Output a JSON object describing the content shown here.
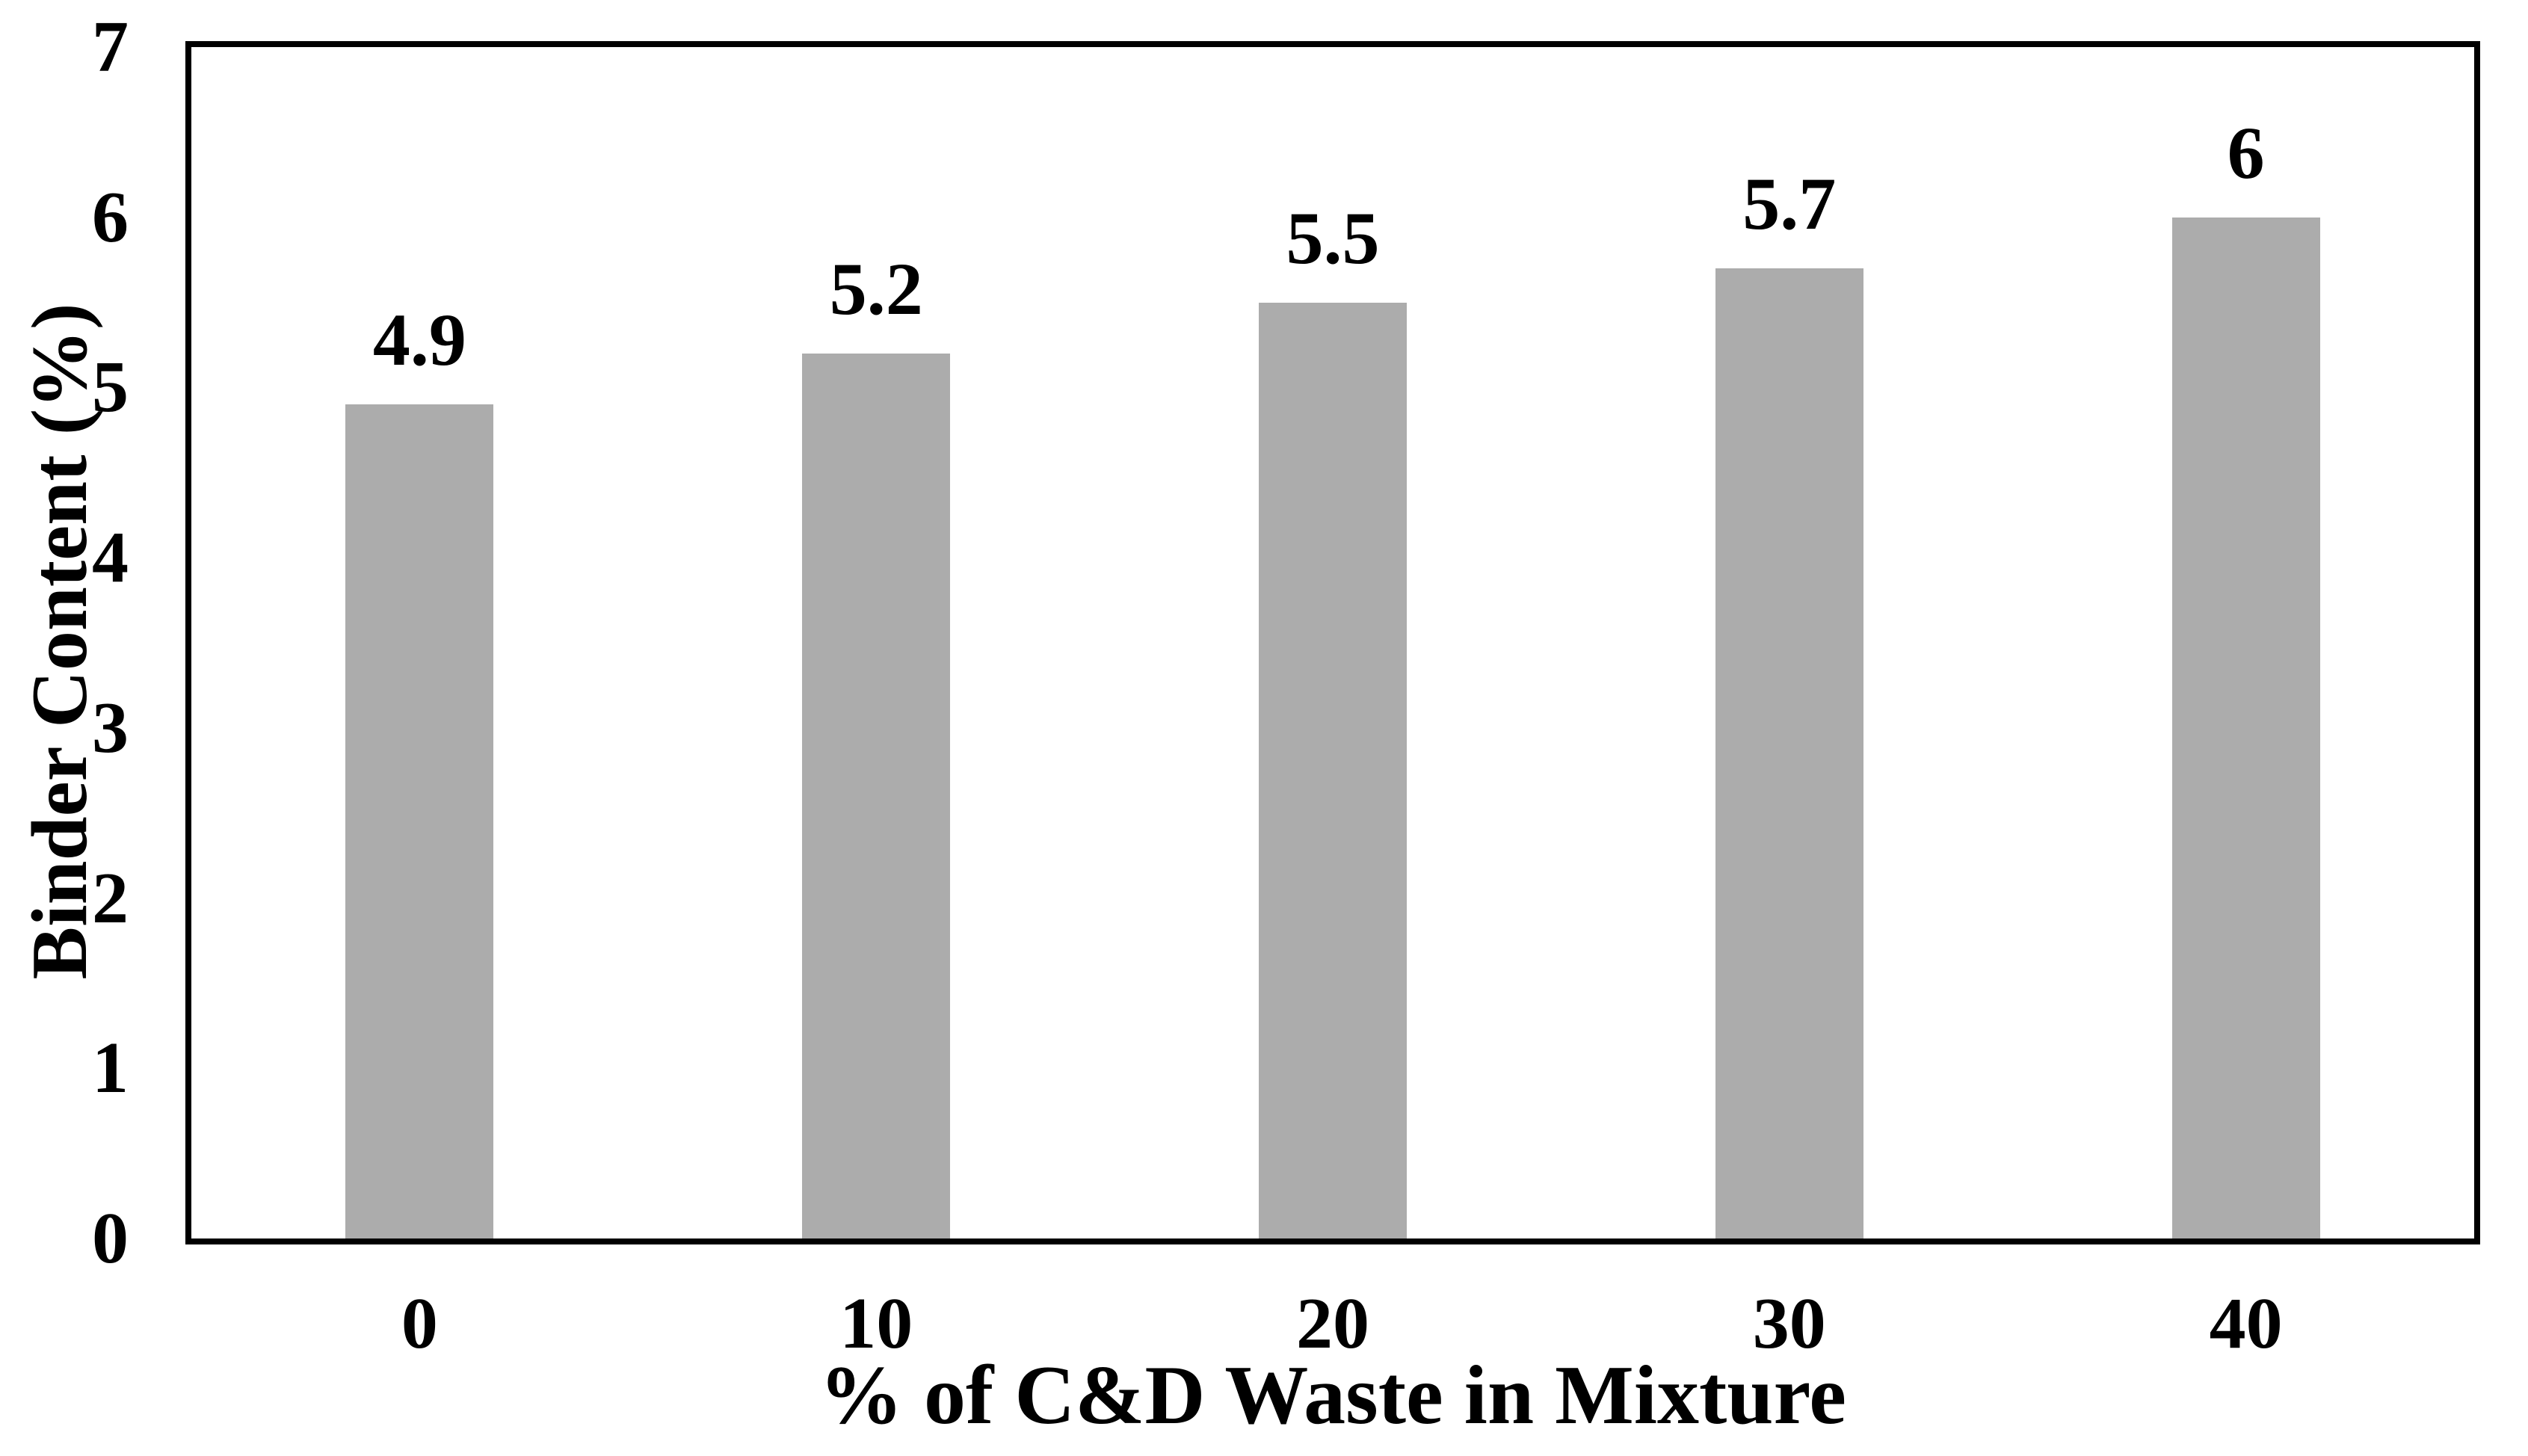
{
  "chart_data": {
    "type": "bar",
    "title": "",
    "categories": [
      "0",
      "10",
      "20",
      "30",
      "40"
    ],
    "values": [
      4.9,
      5.2,
      5.5,
      5.7,
      6
    ],
    "value_labels": [
      "4.9",
      "5.2",
      "5.5",
      "5.7",
      "6"
    ],
    "xlabel": "% of C&D Waste in Mixture",
    "ylabel": "Binder Content (%)",
    "ylim": [
      0,
      7
    ],
    "yticks": [
      "0",
      "1",
      "2",
      "3",
      "4",
      "5",
      "6",
      "7"
    ],
    "grid": false,
    "legend": false,
    "bar_color": "#ACACAC",
    "frame_color": "#000000",
    "text_color": "#000000",
    "background": "#FFFFFF"
  }
}
